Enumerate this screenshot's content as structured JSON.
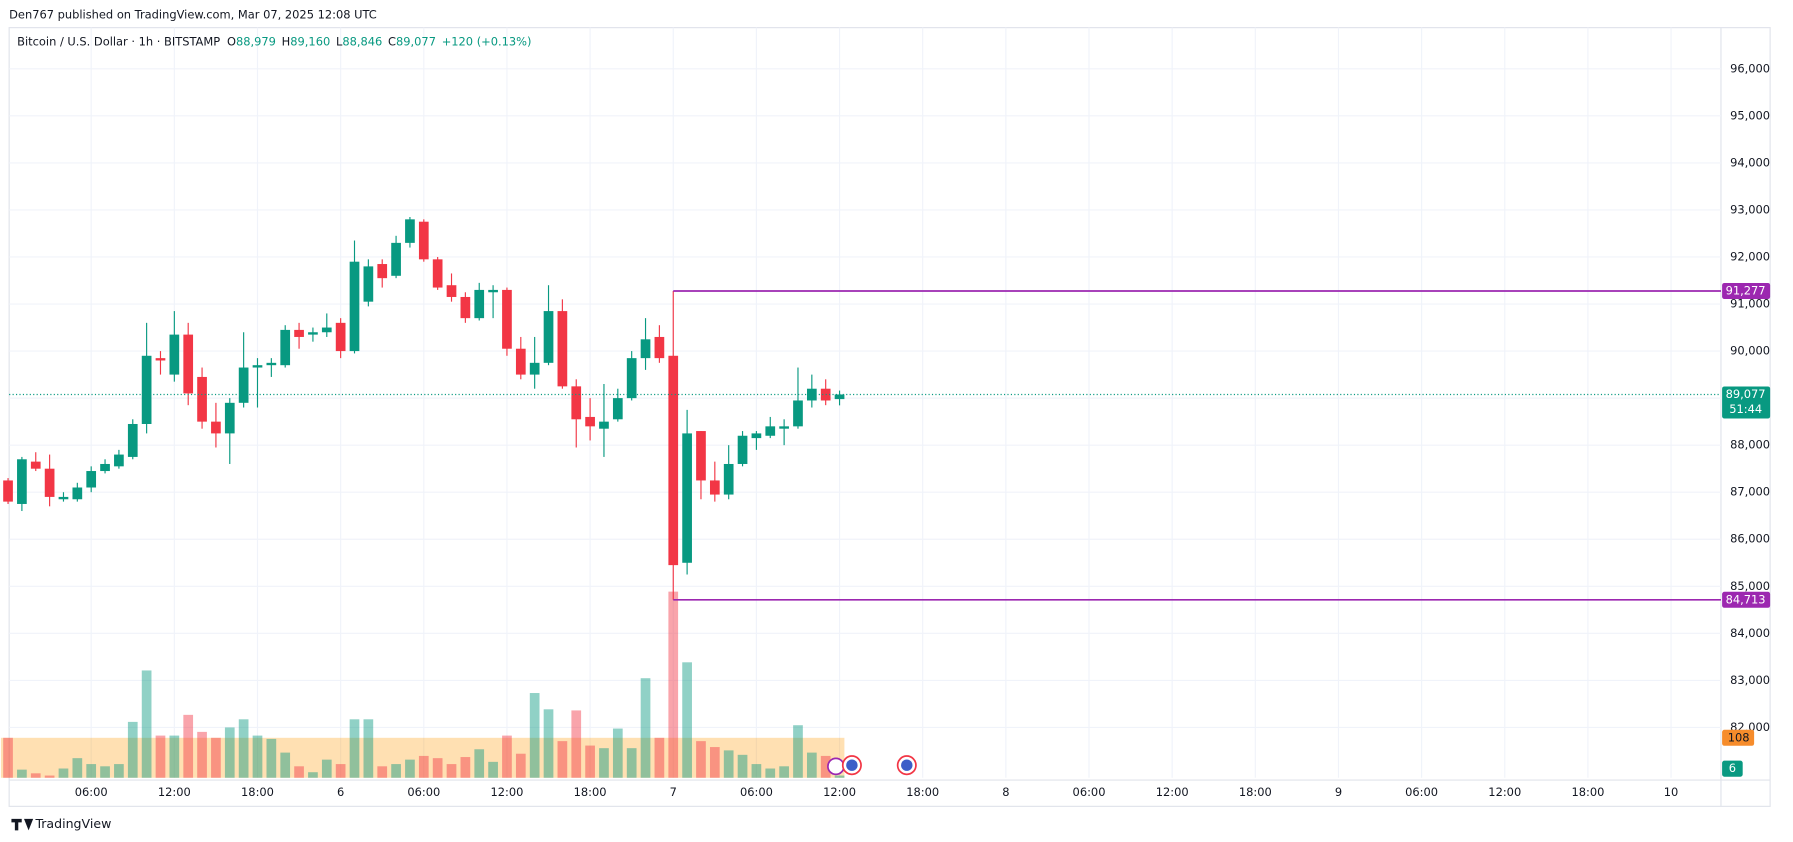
{
  "header": {
    "published": "Den767 published on TradingView.com, Mar 07, 2025 12:08 UTC"
  },
  "legend": {
    "symbol": "Bitcoin / U.S. Dollar · 1h · BITSTAMP",
    "ohlc": [
      {
        "key": "O",
        "value": "88,979"
      },
      {
        "key": "H",
        "value": "89,160"
      },
      {
        "key": "L",
        "value": "88,846"
      },
      {
        "key": "C",
        "value": "89,077"
      }
    ],
    "change": "+120 (+0.13%)"
  },
  "footer": {
    "brand": "TradingView"
  },
  "chart_data": {
    "type": "candlestick",
    "up_color": "#089981",
    "down_color": "#f23645",
    "grid": true,
    "x": [
      0,
      1,
      2,
      3,
      4,
      5,
      6,
      7,
      8,
      9,
      10,
      11,
      12,
      13,
      14,
      15,
      16,
      17,
      18,
      19,
      20,
      21,
      22,
      23,
      24,
      25,
      26,
      27,
      28,
      29,
      30,
      31,
      32,
      33,
      34,
      35,
      36,
      37,
      38,
      39,
      40,
      41,
      42,
      43,
      44,
      45,
      46,
      47,
      48,
      49,
      50,
      51,
      52,
      53,
      54,
      55,
      56,
      57,
      58,
      59,
      60
    ],
    "open": [
      87250,
      86750,
      87650,
      87500,
      86850,
      86850,
      87100,
      87450,
      87550,
      87750,
      88450,
      89850,
      89500,
      90350,
      89450,
      88500,
      88250,
      88900,
      89650,
      89700,
      89700,
      90450,
      90350,
      90400,
      90600,
      90000,
      91050,
      91850,
      91600,
      92300,
      92750,
      91950,
      91400,
      91150,
      90700,
      91250,
      91300,
      90050,
      89500,
      89750,
      90850,
      89250,
      88600,
      88350,
      88550,
      89000,
      89850,
      90300,
      89900,
      85500,
      88300,
      87250,
      86950,
      87600,
      88150,
      88200,
      88350,
      88400,
      88950,
      89200,
      88979
    ],
    "high": [
      87300,
      87750,
      87850,
      87800,
      87000,
      87200,
      87550,
      87700,
      87900,
      88550,
      90600,
      90000,
      90850,
      90600,
      89650,
      88900,
      89000,
      90400,
      89850,
      89850,
      90550,
      90600,
      90500,
      90800,
      90700,
      92350,
      91950,
      91950,
      92450,
      92850,
      92800,
      92000,
      91650,
      91250,
      91450,
      91400,
      91350,
      90300,
      90300,
      91400,
      91100,
      89400,
      89000,
      89300,
      89200,
      90000,
      90700,
      90550,
      91277,
      88750,
      88300,
      87650,
      88000,
      88300,
      88300,
      88600,
      88550,
      89650,
      89500,
      89400,
      89160
    ],
    "low": [
      86750,
      86600,
      87450,
      86700,
      86800,
      86800,
      87000,
      87400,
      87500,
      87700,
      88250,
      89500,
      89350,
      88850,
      88350,
      87950,
      87600,
      88800,
      88800,
      89450,
      89650,
      90050,
      90200,
      90300,
      89850,
      89950,
      90950,
      91350,
      91550,
      92200,
      91900,
      91300,
      91050,
      90600,
      90650,
      90700,
      89900,
      89400,
      89200,
      89700,
      89200,
      87950,
      88100,
      87750,
      88500,
      88950,
      89600,
      89750,
      84713,
      85250,
      86850,
      86800,
      86850,
      87550,
      87900,
      88150,
      88000,
      88350,
      88800,
      88850,
      88846
    ],
    "close": [
      86800,
      87700,
      87500,
      86900,
      86900,
      87100,
      87450,
      87600,
      87800,
      88450,
      89900,
      89800,
      90350,
      89100,
      88500,
      88250,
      88900,
      89650,
      89700,
      89750,
      90450,
      90300,
      90400,
      90500,
      90000,
      91900,
      91800,
      91550,
      92300,
      92800,
      91950,
      91350,
      91150,
      90700,
      91300,
      91300,
      90050,
      89500,
      89750,
      90850,
      89250,
      88550,
      88400,
      88500,
      89000,
      89850,
      90250,
      89850,
      85450,
      88250,
      87250,
      86950,
      87600,
      88200,
      88250,
      88400,
      88400,
      88950,
      89200,
      88950,
      89077
    ],
    "volume": [
      108,
      22,
      12,
      6,
      25,
      53,
      37,
      31,
      37,
      151,
      290,
      114,
      114,
      170,
      124,
      108,
      136,
      158,
      114,
      105,
      68,
      31,
      15,
      49,
      37,
      158,
      158,
      31,
      37,
      49,
      59,
      53,
      37,
      56,
      77,
      43,
      114,
      65,
      229,
      185,
      99,
      182,
      87,
      80,
      133,
      80,
      269,
      108,
      503,
      312,
      99,
      83,
      74,
      62,
      37,
      25,
      31,
      142,
      68,
      59,
      6
    ],
    "volume_ma": 108,
    "volume_ylim": [
      0,
      550
    ],
    "xlim": [
      -0.58,
      123.6
    ],
    "xticks": [
      {
        "value": 6,
        "label": "06:00"
      },
      {
        "value": 12,
        "label": "12:00"
      },
      {
        "value": 18,
        "label": "18:00"
      },
      {
        "value": 24,
        "label": "6"
      },
      {
        "value": 30,
        "label": "06:00"
      },
      {
        "value": 36,
        "label": "12:00"
      },
      {
        "value": 42,
        "label": "18:00"
      },
      {
        "value": 48,
        "label": "7"
      },
      {
        "value": 54,
        "label": "06:00"
      },
      {
        "value": 60,
        "label": "12:00"
      },
      {
        "value": 66,
        "label": "18:00"
      },
      {
        "value": 72,
        "label": "8"
      },
      {
        "value": 78,
        "label": "06:00"
      },
      {
        "value": 84,
        "label": "12:00"
      },
      {
        "value": 90,
        "label": "18:00"
      },
      {
        "value": 96,
        "label": "9"
      },
      {
        "value": 102,
        "label": "06:00"
      },
      {
        "value": 108,
        "label": "12:00"
      },
      {
        "value": 114,
        "label": "18:00"
      },
      {
        "value": 120,
        "label": "10"
      }
    ],
    "ylim": [
      80930,
      96875
    ],
    "yticks": [
      {
        "value": 82000,
        "label": "82,000"
      },
      {
        "value": 83000,
        "label": "83,000"
      },
      {
        "value": 84000,
        "label": "84,000"
      },
      {
        "value": 85000,
        "label": "85,000"
      },
      {
        "value": 86000,
        "label": "86,000"
      },
      {
        "value": 87000,
        "label": "87,000"
      },
      {
        "value": 88000,
        "label": "88,000"
      },
      {
        "value": 89000,
        "label": "89,000"
      },
      {
        "value": 90000,
        "label": "90,000"
      },
      {
        "value": 91000,
        "label": "91,000"
      },
      {
        "value": 92000,
        "label": "92,000"
      },
      {
        "value": 93000,
        "label": "93,000"
      },
      {
        "value": 94000,
        "label": "94,000"
      },
      {
        "value": 95000,
        "label": "95,000"
      },
      {
        "value": 96000,
        "label": "96,000"
      }
    ],
    "levels": [
      {
        "value": 91277,
        "label": "91,277",
        "start": 48,
        "color": "#9c27b0"
      },
      {
        "value": 84713,
        "label": "84,713",
        "start": 48,
        "color": "#9c27b0"
      }
    ],
    "last_price": {
      "value": 89077,
      "label": "89,077",
      "countdown": "51:44"
    }
  }
}
